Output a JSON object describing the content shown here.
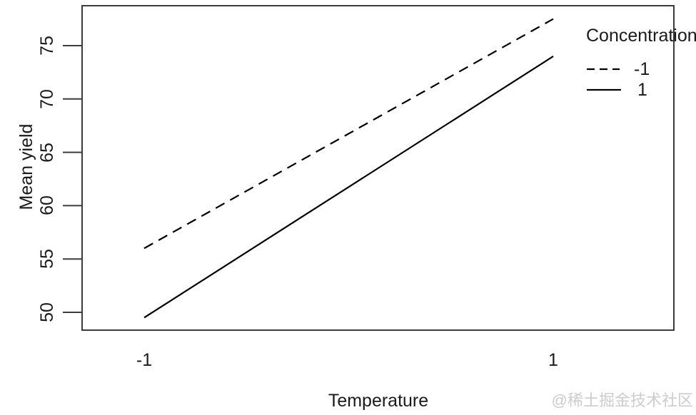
{
  "figure": {
    "watermark": "@稀土掘金技术社区",
    "colors": {
      "background": "#ffffff",
      "axis": "#3c3c3c",
      "line": "#000000",
      "text": "#1a1a1a",
      "watermark": "#cccccc"
    }
  },
  "chart_data": {
    "type": "line",
    "title": "",
    "xlabel": "Temperature",
    "ylabel": "Mean yield",
    "x": [
      -1,
      1
    ],
    "x_tick_labels": [
      "-1",
      "1"
    ],
    "y_ticks": [
      50,
      55,
      60,
      65,
      70,
      75
    ],
    "xlim": [
      -1.3,
      1.6
    ],
    "ylim": [
      48.3,
      78.7
    ],
    "grid": false,
    "legend": {
      "title": "Concentration",
      "position": "top-right",
      "entries": [
        {
          "label": "-1",
          "linestyle": "dashed"
        },
        {
          "label": "1",
          "linestyle": "solid"
        }
      ]
    },
    "series": [
      {
        "name": "-1",
        "linestyle": "dashed",
        "x": [
          -1,
          1
        ],
        "values": [
          56,
          77.5
        ]
      },
      {
        "name": "1",
        "linestyle": "solid",
        "x": [
          -1,
          1
        ],
        "values": [
          49.5,
          74
        ]
      }
    ]
  }
}
